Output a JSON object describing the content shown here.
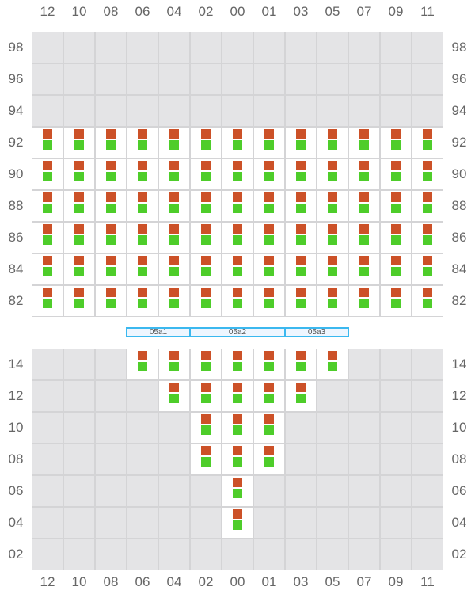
{
  "columns": [
    "12",
    "10",
    "08",
    "06",
    "04",
    "02",
    "00",
    "01",
    "03",
    "05",
    "07",
    "09",
    "11"
  ],
  "colors": {
    "marker_top": "#cc5128",
    "marker_bottom": "#4ecd2a",
    "unavailable": "#e4e4e6",
    "available": "#ffffff",
    "grid": "#d4d4d6",
    "section_border": "#3bb8ef"
  },
  "top_grid": {
    "rows": [
      {
        "label": "98",
        "available": []
      },
      {
        "label": "96",
        "available": []
      },
      {
        "label": "94",
        "available": []
      },
      {
        "label": "92",
        "available": [
          "12",
          "10",
          "08",
          "06",
          "04",
          "02",
          "00",
          "01",
          "03",
          "05",
          "07",
          "09",
          "11"
        ]
      },
      {
        "label": "90",
        "available": [
          "12",
          "10",
          "08",
          "06",
          "04",
          "02",
          "00",
          "01",
          "03",
          "05",
          "07",
          "09",
          "11"
        ]
      },
      {
        "label": "88",
        "available": [
          "12",
          "10",
          "08",
          "06",
          "04",
          "02",
          "00",
          "01",
          "03",
          "05",
          "07",
          "09",
          "11"
        ]
      },
      {
        "label": "86",
        "available": [
          "12",
          "10",
          "08",
          "06",
          "04",
          "02",
          "00",
          "01",
          "03",
          "05",
          "07",
          "09",
          "11"
        ]
      },
      {
        "label": "84",
        "available": [
          "12",
          "10",
          "08",
          "06",
          "04",
          "02",
          "00",
          "01",
          "03",
          "05",
          "07",
          "09",
          "11"
        ]
      },
      {
        "label": "82",
        "available": [
          "12",
          "10",
          "08",
          "06",
          "04",
          "02",
          "00",
          "01",
          "03",
          "05",
          "07",
          "09",
          "11"
        ]
      }
    ]
  },
  "sections": [
    {
      "label": "05a1",
      "from": "06",
      "to": "04"
    },
    {
      "label": "05a2",
      "from": "02",
      "to": "01"
    },
    {
      "label": "05a3",
      "from": "03",
      "to": "05"
    }
  ],
  "bottom_grid": {
    "rows": [
      {
        "label": "14",
        "available": [
          "06",
          "04",
          "02",
          "00",
          "01",
          "03",
          "05"
        ]
      },
      {
        "label": "12",
        "available": [
          "04",
          "02",
          "00",
          "01",
          "03"
        ]
      },
      {
        "label": "10",
        "available": [
          "02",
          "00",
          "01"
        ]
      },
      {
        "label": "08",
        "available": [
          "02",
          "00",
          "01"
        ]
      },
      {
        "label": "06",
        "available": [
          "00"
        ]
      },
      {
        "label": "04",
        "available": [
          "00"
        ]
      },
      {
        "label": "02",
        "available": []
      }
    ]
  }
}
